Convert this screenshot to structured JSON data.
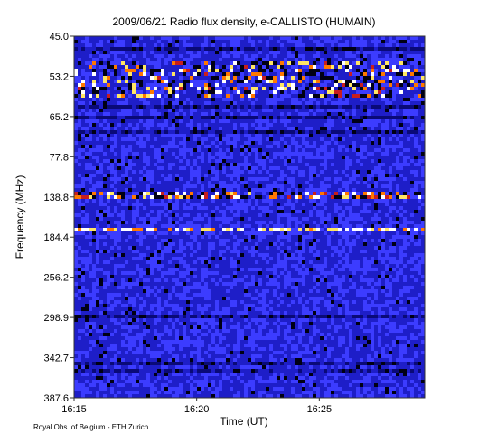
{
  "chart_data": {
    "type": "heatmap",
    "title": "2009/06/21  Radio flux density, e-CALLISTO (HUMAIN)",
    "xlabel": "Time (UT)",
    "ylabel": "Frequency (MHz)",
    "x_ticks": [
      "16:15",
      "16:20",
      "16:25"
    ],
    "x_tick_minutes": [
      0,
      5,
      10
    ],
    "x_range_minutes": [
      0,
      14.3
    ],
    "y_ticks": [
      "45.0",
      "53.2",
      "65.2",
      "77.8",
      "138.8",
      "184.4",
      "256.2",
      "298.9",
      "342.7",
      "387.6"
    ],
    "y_range_mhz": [
      45.0,
      387.6
    ],
    "colormap": [
      "#000014",
      "#0a0a78",
      "#1e1ec8",
      "#3c3cff",
      "#c81e1e",
      "#ff7800",
      "#ffe664",
      "#ffffff"
    ],
    "bright_bands": [
      {
        "from_mhz": 50.0,
        "to_mhz": 60.0,
        "intensity": 0.55
      },
      {
        "from_mhz": 130.0,
        "to_mhz": 142.0,
        "intensity": 0.85
      }
    ],
    "persistent_line_mhz": 175.0
  },
  "credit": "Royal Obs. of Belgium - ETH Zurich"
}
